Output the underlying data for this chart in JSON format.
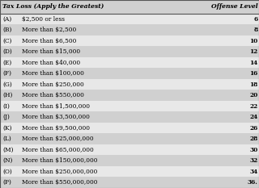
{
  "title_col1": "Tax Loss (Apply the Greatest)",
  "title_col2": "Offense Level",
  "rows": [
    [
      "(A)",
      "$2,500 or less",
      "6"
    ],
    [
      "(B)",
      "More than $2,500",
      "8"
    ],
    [
      "(C)",
      "More than $6,500",
      "10"
    ],
    [
      "(D)",
      "More than $15,000",
      "12"
    ],
    [
      "(E)",
      "More than $40,000",
      "14"
    ],
    [
      "(F)",
      "More than $100,000",
      "16"
    ],
    [
      "(G)",
      "More than $250,000",
      "18"
    ],
    [
      "(H)",
      "More than $550,000",
      "20"
    ],
    [
      "(I)",
      "More than $1,500,000",
      "22"
    ],
    [
      "(J)",
      "More than $3,500,000",
      "24"
    ],
    [
      "(K)",
      "More than $9,500,000",
      "26"
    ],
    [
      "(L)",
      "More than $25,000,000",
      "28"
    ],
    [
      "(M)",
      "More than $65,000,000",
      "30"
    ],
    [
      "(N)",
      "More than $150,000,000",
      "32"
    ],
    [
      "(O)",
      "More than $250,000,000",
      "34"
    ],
    [
      "(P)",
      "More than $550,000,000",
      "36."
    ]
  ],
  "shaded_rows": [
    1,
    3,
    5,
    7,
    9,
    11,
    13,
    15
  ],
  "bg_color": "#e8e8e8",
  "stripe_color": "#d0d0d0",
  "header_bg": "#d0d0d0",
  "border_color": "#555555",
  "text_color": "#000000",
  "header_text_color": "#000000"
}
